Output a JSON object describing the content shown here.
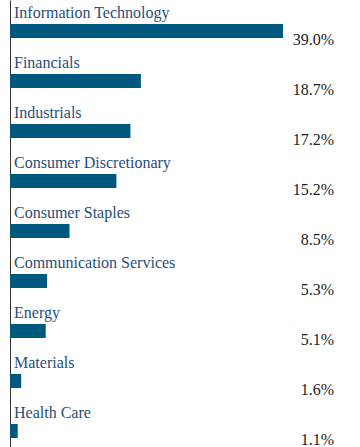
{
  "chart_data": {
    "type": "bar",
    "orientation": "horizontal",
    "categories": [
      "Information Technology",
      "Financials",
      "Industrials",
      "Consumer Discretionary",
      "Consumer Staples",
      "Communication Services",
      "Energy",
      "Materials",
      "Health Care"
    ],
    "values": [
      39.0,
      18.7,
      17.2,
      15.2,
      8.5,
      5.3,
      5.1,
      1.6,
      1.1
    ],
    "value_labels": [
      "39.0%",
      "18.7%",
      "17.2%",
      "15.2%",
      "8.5%",
      "5.3%",
      "5.1%",
      "1.6%",
      "1.1%"
    ],
    "color": "#00587f",
    "data_labels": true,
    "tick_labels": false,
    "grid": false
  }
}
